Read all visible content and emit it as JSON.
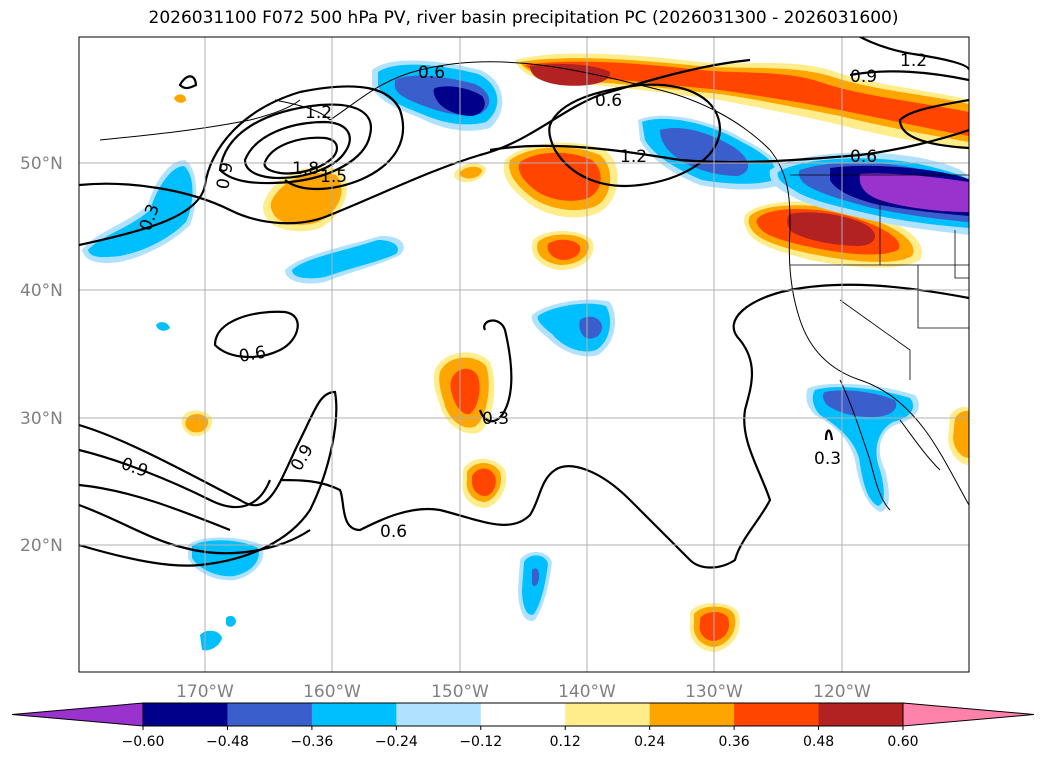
{
  "title": "2026031100 F072 500 hPa PV, river basin precipitation PC (2026031300 - 2026031600)",
  "lat_labels": [
    "50°N",
    "40°N",
    "30°N",
    "20°N"
  ],
  "lon_labels": [
    "170°W",
    "160°W",
    "150°W",
    "140°W",
    "130°W",
    "120°W"
  ],
  "contour_labels": [
    "0.6",
    "1.2",
    "1.8",
    "1.5",
    "0.9",
    "0.6",
    "0.3",
    "0.9",
    "1.2",
    "0.9",
    "1.2",
    "0.6",
    "0.6",
    "0.3",
    "0.9",
    "0.6",
    "0.3",
    "0.3"
  ],
  "colorbar": {
    "ticks": [
      "−0.60",
      "−0.48",
      "−0.36",
      "−0.24",
      "−0.12",
      "0.12",
      "0.24",
      "0.36",
      "0.48",
      "0.60"
    ],
    "colors": [
      "#9a32cd",
      "#00008b",
      "#3a5fcd",
      "#00bfff",
      "#b0e2ff",
      "#ffffff",
      "#ffec8b",
      "#ffa500",
      "#ff4500",
      "#b22222",
      "#ff82ab"
    ]
  },
  "palette": {
    "neg_060": "#9a32cd",
    "neg_048": "#00008b",
    "neg_036": "#3a5fcd",
    "neg_024": "#00bfff",
    "neg_012": "#b0e2ff",
    "pos_012": "#ffec8b",
    "pos_024": "#ffa500",
    "pos_036": "#ff4500",
    "pos_048": "#b22222",
    "pos_060": "#ff82ab"
  }
}
